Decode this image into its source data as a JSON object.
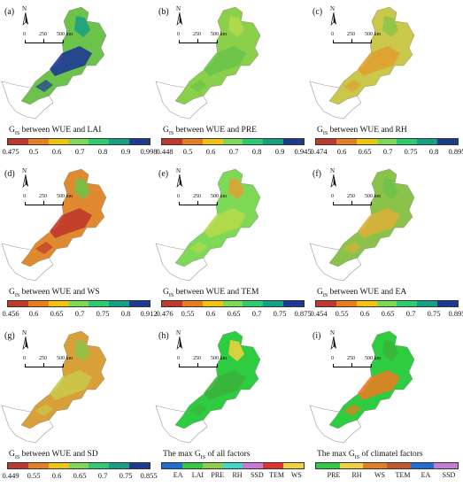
{
  "scale": {
    "z": "0",
    "m": "250",
    "e": "500 km"
  },
  "north": "N",
  "panels": [
    {
      "label": "(a)",
      "title_pre": "G",
      "title_sub": "IS",
      "title_post": " between WUE and LAI",
      "ticks": [
        "0.475",
        "0.5",
        "0.6",
        "0.7",
        "0.8",
        "0.9",
        "0.998"
      ]
    },
    {
      "label": "(b)",
      "title_pre": "G",
      "title_sub": "IS",
      "title_post": " between WUE and PRE",
      "ticks": [
        "0.448",
        "0.5",
        "0.6",
        "0.7",
        "0.8",
        "0.9",
        "0.945"
      ]
    },
    {
      "label": "(c)",
      "title_pre": "G",
      "title_sub": "IS",
      "title_post": " between WUE and RH",
      "ticks": [
        "0.474",
        "0.6",
        "0.65",
        "0.7",
        "0.75",
        "0.8",
        "0.895"
      ]
    },
    {
      "label": "(d)",
      "title_pre": "G",
      "title_sub": "IS",
      "title_post": " between WUE and WS",
      "ticks": [
        "0.456",
        "0.6",
        "0.65",
        "0.7",
        "0.75",
        "0.8",
        "0.912"
      ]
    },
    {
      "label": "(e)",
      "title_pre": "G",
      "title_sub": "IS",
      "title_post": " between WUE and TEM",
      "ticks": [
        "0.476",
        "0.55",
        "0.6",
        "0.65",
        "0.7",
        "0.75",
        "0.875"
      ]
    },
    {
      "label": "(f)",
      "title_pre": "G",
      "title_sub": "IS",
      "title_post": " between WUE and EA",
      "ticks": [
        "0.454",
        "0.55",
        "0.6",
        "0.65",
        "0.7",
        "0.75",
        "0.895"
      ]
    },
    {
      "label": "(g)",
      "title_pre": "G",
      "title_sub": "IS",
      "title_post": " between WUE and SD",
      "ticks": [
        "0.449",
        "0.55",
        "0.6",
        "0.65",
        "0.7",
        "0.75",
        "0.855"
      ]
    },
    {
      "label": "(h)",
      "title_pre": "The max G",
      "title_sub": "IS",
      "title_post": " of all factors",
      "cats": [
        "EA",
        "LAI",
        "PRE",
        "RH",
        "SSD",
        "TEM",
        "WS"
      ]
    },
    {
      "label": "(i)",
      "title_pre": "The max G",
      "title_sub": "IS",
      "title_post": " of climatel factors",
      "cats": [
        "PRE",
        "RH",
        "WS",
        "TEM",
        "EA",
        "SSD"
      ]
    }
  ],
  "colors": {
    "ramp": [
      "#c0392b",
      "#e67e22",
      "#f1c40f",
      "#7ed957",
      "#2ecc71",
      "#16a085",
      "#1f3a93"
    ],
    "h_cats": [
      "#1f6fd6",
      "#2ecc40",
      "#8bd04b",
      "#3fd9c8",
      "#c77bd9",
      "#e0342a",
      "#f4d03f"
    ],
    "i_cats": [
      "#2ecc40",
      "#f4d03f",
      "#e67e22",
      "#c05a2a",
      "#1f6fd6",
      "#c77bd9"
    ]
  }
}
